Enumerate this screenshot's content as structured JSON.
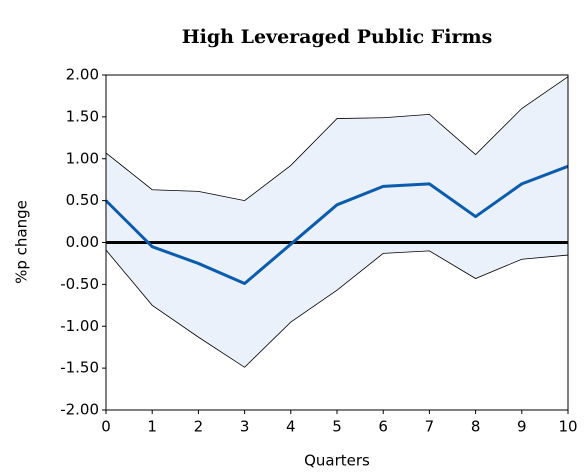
{
  "chart_data": {
    "type": "line",
    "title": "High Leveraged Public Firms",
    "xlabel": "Quarters",
    "ylabel": "%p change",
    "x": [
      0,
      1,
      2,
      3,
      4,
      5,
      6,
      7,
      8,
      9,
      10
    ],
    "series": [
      {
        "color": "#0b5cad",
        "values": [
          0.5,
          -0.05,
          -0.25,
          -0.49,
          -0.02,
          0.45,
          0.67,
          0.7,
          0.31,
          0.7,
          0.91
        ]
      }
    ],
    "band": {
      "color": "#eaf1fb",
      "line_color": "#000000",
      "upper": [
        1.07,
        0.63,
        0.61,
        0.5,
        0.92,
        1.48,
        1.49,
        1.53,
        1.05,
        1.6,
        1.98
      ],
      "lower": [
        -0.09,
        -0.75,
        -1.13,
        -1.49,
        -0.95,
        -0.57,
        -0.13,
        -0.1,
        -0.43,
        -0.2,
        -0.15
      ]
    },
    "hlines": [
      0
    ],
    "xlim": [
      0,
      10
    ],
    "xticks": [
      0,
      1,
      2,
      3,
      4,
      5,
      6,
      7,
      8,
      9,
      10
    ],
    "ylim": [
      -2,
      2
    ],
    "yticks": [
      {
        "value": -2,
        "label": "-2.00"
      },
      {
        "value": -1.5,
        "label": "-1.50"
      },
      {
        "value": -1,
        "label": "-1.00"
      },
      {
        "value": -0.5,
        "label": "-0.50"
      },
      {
        "value": 0,
        "label": "0.00"
      },
      {
        "value": 0.5,
        "label": "0.50"
      },
      {
        "value": 1,
        "label": "1.00"
      },
      {
        "value": 1.5,
        "label": "1.50"
      },
      {
        "value": 2,
        "label": "2.00"
      }
    ]
  }
}
